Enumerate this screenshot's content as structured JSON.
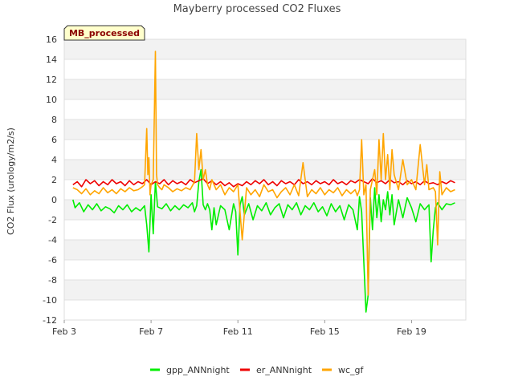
{
  "chart_data": {
    "type": "line",
    "title": "Mayberry processed CO2 Fluxes",
    "xlabel": "",
    "ylabel": "CO2 Flux (urology/m2/s)",
    "badge": "MB_processed",
    "xlim": [
      3,
      21.5
    ],
    "ylim": [
      -12,
      16
    ],
    "yticks": [
      -12,
      -10,
      -8,
      -6,
      -4,
      -2,
      0,
      2,
      4,
      6,
      8,
      10,
      12,
      14,
      16
    ],
    "xticks": [
      {
        "value": 3,
        "label": "Feb 3"
      },
      {
        "value": 7,
        "label": "Feb 7"
      },
      {
        "value": 11,
        "label": "Feb 11"
      },
      {
        "value": 15,
        "label": "Feb 15"
      },
      {
        "value": 19,
        "label": "Feb 19"
      }
    ],
    "series": [
      {
        "name": "gpp_ANNnight",
        "color": "#00ee00",
        "x": [
          3.4,
          3.5,
          3.7,
          3.9,
          4.1,
          4.3,
          4.5,
          4.7,
          4.9,
          5.1,
          5.3,
          5.5,
          5.7,
          5.9,
          6.1,
          6.3,
          6.5,
          6.7,
          6.8,
          6.9,
          7.0,
          7.1,
          7.2,
          7.3,
          7.5,
          7.7,
          7.9,
          8.1,
          8.3,
          8.5,
          8.7,
          8.9,
          9.0,
          9.1,
          9.2,
          9.3,
          9.4,
          9.5,
          9.6,
          9.7,
          9.8,
          9.9,
          10.0,
          10.2,
          10.4,
          10.6,
          10.8,
          10.9,
          11.0,
          11.1,
          11.2,
          11.3,
          11.5,
          11.7,
          11.9,
          12.1,
          12.3,
          12.5,
          12.7,
          12.9,
          13.1,
          13.3,
          13.5,
          13.7,
          13.9,
          14.1,
          14.3,
          14.5,
          14.7,
          14.9,
          15.1,
          15.3,
          15.5,
          15.7,
          15.9,
          16.1,
          16.3,
          16.5,
          16.6,
          16.7,
          16.8,
          16.9,
          17.0,
          17.1,
          17.2,
          17.3,
          17.4,
          17.5,
          17.6,
          17.7,
          17.8,
          17.9,
          18.0,
          18.1,
          18.2,
          18.4,
          18.6,
          18.8,
          19.0,
          19.2,
          19.4,
          19.6,
          19.8,
          19.9,
          20.0,
          20.1,
          20.2,
          20.4,
          20.6,
          20.8,
          21.0
        ],
        "values": [
          0.0,
          -0.8,
          -0.3,
          -1.2,
          -0.5,
          -1.0,
          -0.4,
          -1.1,
          -0.7,
          -0.9,
          -1.3,
          -0.6,
          -1.0,
          -0.5,
          -1.2,
          -0.8,
          -1.1,
          -0.6,
          -2.5,
          -5.2,
          0.5,
          -3.4,
          1.8,
          -0.7,
          -0.9,
          -0.4,
          -1.1,
          -0.6,
          -1.0,
          -0.5,
          -0.8,
          -0.3,
          -1.2,
          -0.6,
          1.8,
          3.0,
          -0.5,
          -1.0,
          -0.4,
          -1.0,
          -3.0,
          -0.8,
          -2.5,
          -0.6,
          -1.0,
          -3.0,
          -0.4,
          -1.2,
          -5.5,
          -0.5,
          0.3,
          -1.5,
          -0.4,
          -2.0,
          -0.6,
          -1.1,
          -0.3,
          -1.5,
          -0.8,
          -0.4,
          -1.8,
          -0.5,
          -1.0,
          -0.3,
          -1.5,
          -0.6,
          -1.0,
          -0.3,
          -1.2,
          -0.7,
          -1.6,
          -0.4,
          -1.2,
          -0.6,
          -2.0,
          -0.5,
          -1.0,
          -3.0,
          0.3,
          -1.2,
          -6.2,
          -11.2,
          -9.5,
          0.2,
          -3.0,
          1.2,
          -1.8,
          0.5,
          -2.2,
          0.0,
          -1.0,
          0.8,
          -1.5,
          0.5,
          -2.5,
          0.0,
          -1.8,
          0.2,
          -0.8,
          -2.2,
          -0.4,
          -1.0,
          -0.5,
          -6.2,
          -3.0,
          -0.8,
          -0.3,
          -1.0,
          -0.4,
          -0.5,
          -0.3
        ]
      },
      {
        "name": "er_ANNnight",
        "color": "#ee0000",
        "x": [
          3.4,
          3.6,
          3.8,
          4.0,
          4.2,
          4.4,
          4.6,
          4.8,
          5.0,
          5.2,
          5.4,
          5.6,
          5.8,
          6.0,
          6.2,
          6.4,
          6.6,
          6.8,
          7.0,
          7.2,
          7.4,
          7.6,
          7.8,
          8.0,
          8.2,
          8.4,
          8.6,
          8.8,
          9.0,
          9.2,
          9.4,
          9.6,
          9.8,
          10.0,
          10.2,
          10.4,
          10.6,
          10.8,
          11.0,
          11.2,
          11.4,
          11.6,
          11.8,
          12.0,
          12.2,
          12.4,
          12.6,
          12.8,
          13.0,
          13.2,
          13.4,
          13.6,
          13.8,
          14.0,
          14.2,
          14.4,
          14.6,
          14.8,
          15.0,
          15.2,
          15.4,
          15.6,
          15.8,
          16.0,
          16.2,
          16.4,
          16.6,
          16.8,
          17.0,
          17.2,
          17.4,
          17.6,
          17.8,
          18.0,
          18.2,
          18.4,
          18.6,
          18.8,
          19.0,
          19.2,
          19.4,
          19.6,
          19.8,
          20.0,
          20.2,
          20.4,
          20.6,
          20.8,
          21.0
        ],
        "values": [
          1.5,
          1.8,
          1.3,
          2.0,
          1.6,
          1.9,
          1.4,
          1.8,
          1.5,
          2.0,
          1.6,
          1.8,
          1.4,
          1.9,
          1.5,
          1.8,
          1.6,
          2.0,
          1.5,
          1.8,
          1.6,
          2.0,
          1.5,
          1.9,
          1.6,
          1.8,
          1.5,
          2.0,
          1.7,
          1.9,
          2.1,
          1.6,
          1.9,
          1.5,
          1.8,
          1.4,
          1.7,
          1.3,
          1.6,
          1.4,
          1.8,
          1.5,
          1.9,
          1.6,
          2.0,
          1.5,
          1.8,
          1.4,
          1.9,
          1.6,
          1.8,
          1.5,
          2.0,
          1.6,
          1.8,
          1.5,
          1.9,
          1.6,
          1.8,
          1.5,
          2.0,
          1.6,
          1.8,
          1.5,
          1.9,
          1.7,
          2.0,
          1.8,
          1.6,
          2.1,
          1.7,
          1.9,
          1.6,
          2.0,
          1.7,
          1.8,
          1.5,
          1.9,
          1.6,
          1.8,
          1.5,
          1.9,
          1.6,
          1.7,
          1.5,
          1.8,
          1.6,
          1.9,
          1.7
        ]
      },
      {
        "name": "wc_gf",
        "color": "#ffa500",
        "x": [
          3.4,
          3.6,
          3.8,
          4.0,
          4.2,
          4.4,
          4.6,
          4.8,
          5.0,
          5.2,
          5.4,
          5.6,
          5.8,
          6.0,
          6.2,
          6.4,
          6.6,
          6.7,
          6.8,
          6.85,
          6.9,
          6.95,
          7.0,
          7.1,
          7.2,
          7.25,
          7.3,
          7.4,
          7.5,
          7.6,
          7.8,
          8.0,
          8.2,
          8.4,
          8.6,
          8.8,
          9.0,
          9.1,
          9.2,
          9.3,
          9.4,
          9.5,
          9.6,
          9.7,
          9.8,
          10.0,
          10.2,
          10.4,
          10.6,
          10.8,
          11.0,
          11.2,
          11.4,
          11.6,
          11.8,
          12.0,
          12.2,
          12.4,
          12.6,
          12.8,
          13.0,
          13.2,
          13.4,
          13.6,
          13.8,
          14.0,
          14.2,
          14.4,
          14.6,
          14.8,
          15.0,
          15.2,
          15.4,
          15.6,
          15.8,
          16.0,
          16.2,
          16.4,
          16.5,
          16.6,
          16.7,
          16.8,
          16.9,
          17.0,
          17.1,
          17.2,
          17.3,
          17.4,
          17.5,
          17.6,
          17.7,
          17.8,
          17.9,
          18.0,
          18.1,
          18.2,
          18.4,
          18.6,
          18.8,
          19.0,
          19.2,
          19.4,
          19.6,
          19.7,
          19.8,
          20.0,
          20.1,
          20.2,
          20.3,
          20.4,
          20.6,
          20.8,
          21.0
        ],
        "values": [
          1.2,
          1.0,
          0.6,
          1.1,
          0.5,
          0.9,
          0.6,
          1.2,
          0.7,
          1.0,
          0.6,
          1.1,
          0.8,
          1.2,
          0.9,
          1.0,
          1.3,
          1.5,
          7.1,
          2.5,
          4.2,
          0.5,
          1.5,
          2.0,
          14.8,
          2.5,
          1.5,
          1.2,
          1.0,
          1.5,
          1.2,
          0.8,
          1.1,
          0.9,
          1.2,
          1.0,
          1.8,
          6.6,
          3.0,
          5.0,
          2.0,
          3.0,
          1.5,
          1.0,
          2.0,
          1.0,
          1.5,
          0.5,
          1.2,
          0.8,
          1.5,
          -4.0,
          1.2,
          0.5,
          1.0,
          0.3,
          1.5,
          0.8,
          1.0,
          0.2,
          0.8,
          1.2,
          0.5,
          1.5,
          0.4,
          3.7,
          0.3,
          1.0,
          0.6,
          1.2,
          0.5,
          1.0,
          0.7,
          1.2,
          0.4,
          1.0,
          0.6,
          1.0,
          0.4,
          1.0,
          6.0,
          0.5,
          1.5,
          -9.5,
          1.0,
          2.0,
          3.0,
          0.5,
          6.0,
          2.0,
          6.6,
          2.0,
          4.5,
          1.0,
          5.0,
          2.5,
          1.0,
          4.0,
          1.5,
          2.0,
          1.0,
          5.5,
          1.5,
          3.5,
          1.0,
          1.2,
          0.8,
          -4.5,
          2.8,
          0.5,
          1.2,
          0.8,
          1.0
        ]
      }
    ],
    "legend": [
      {
        "label": "gpp_ANNnight",
        "color": "#00ee00"
      },
      {
        "label": "er_ANNnight",
        "color": "#ee0000"
      },
      {
        "label": "wc_gf",
        "color": "#ffa500"
      }
    ]
  }
}
